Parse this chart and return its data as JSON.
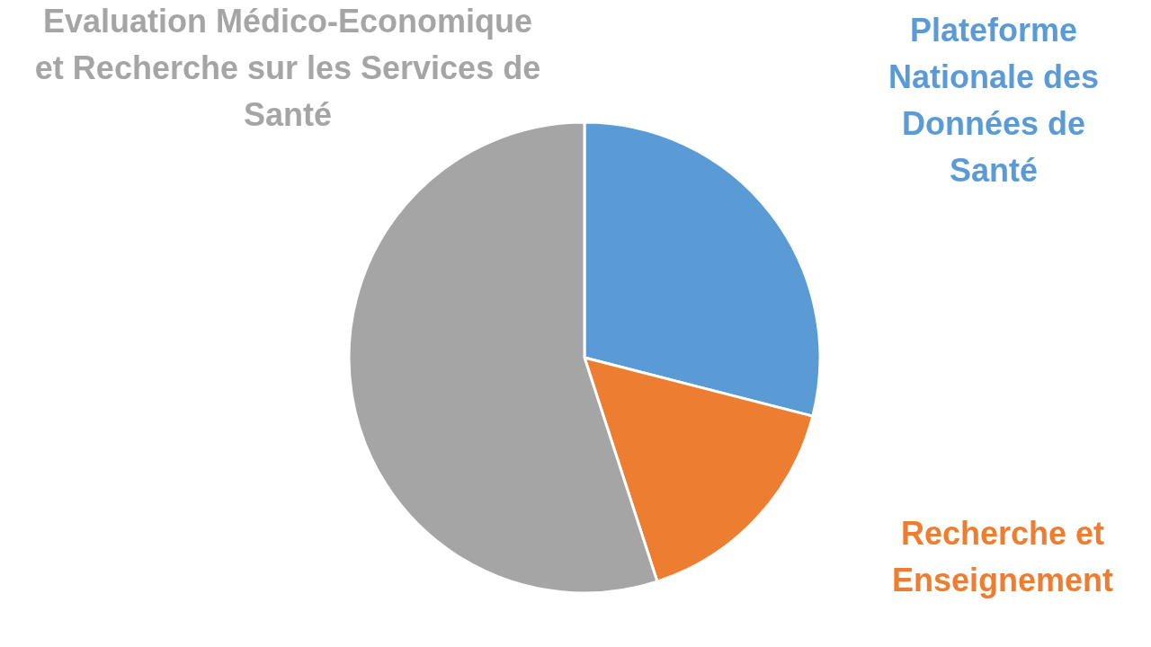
{
  "chart_data": {
    "type": "pie",
    "categories": [
      "Plateforme Nationale des Données de Santé",
      "Recherche et Enseignement",
      "Evaluation Médico-Economique et Recherche sur les Services de Santé"
    ],
    "values": [
      29,
      16,
      55
    ],
    "colors": [
      "#5b9bd5",
      "#ed7d31",
      "#a5a5a5"
    ]
  }
}
